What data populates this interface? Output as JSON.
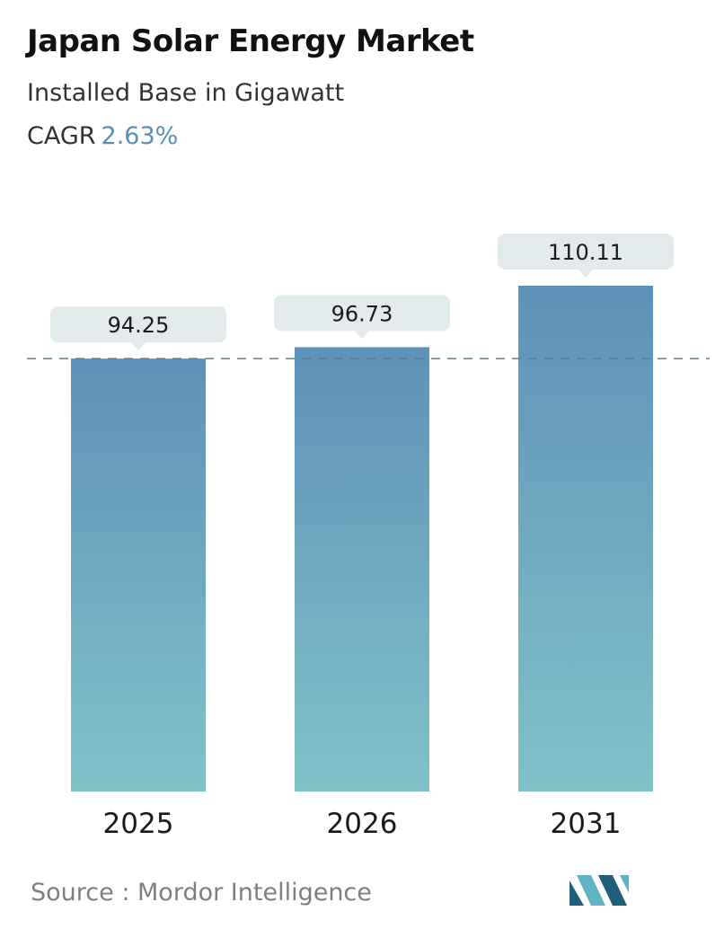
{
  "header": {
    "title": "Japan Solar Energy Market",
    "subtitle": "Installed Base in Gigawatt",
    "cagr_label": "CAGR",
    "cagr_value": "2.63%"
  },
  "footer": {
    "source_label": "Source :",
    "source_name": "Mordor Intelligence",
    "logo_icon": "mordor-intelligence-logo-icon"
  },
  "colors": {
    "bar_top": "#5e91b8",
    "bar_bottom": "#7fc3c8",
    "label_bg": "#e3eaec",
    "dashed_line": "#5a7f95",
    "accent": "#5a8fb0",
    "logo_dark": "#1f5f7a",
    "logo_light": "#5fb3c3"
  },
  "chart_data": {
    "type": "bar",
    "categories": [
      "2025",
      "2026",
      "2031"
    ],
    "values": [
      94.25,
      96.73,
      110.11
    ],
    "value_labels": [
      "94.25",
      "96.73",
      "110.11"
    ],
    "reference_line": "dashed at first value",
    "grid": false
  }
}
